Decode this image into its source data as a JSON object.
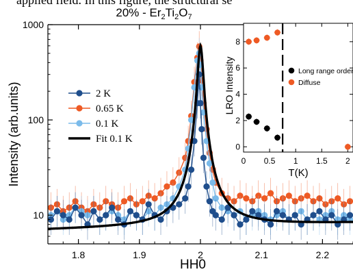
{
  "header_fragment": "applied field. In this figure, the structural se",
  "chart_data": [
    {
      "type": "line",
      "title": "20% - Er2Ti2O7",
      "title_parts": [
        "20%  - Er",
        "2",
        "Ti",
        "2",
        "O",
        "7"
      ],
      "xlabel": "HH0",
      "ylabel": "Intensity (arb.units)",
      "xlim": [
        1.75,
        2.25
      ],
      "ylim": [
        5,
        1000
      ],
      "yscale": "log",
      "xticks": [
        1.8,
        1.9,
        2.0,
        2.1,
        2.2
      ],
      "xtick_labels": [
        "1.8",
        "1.9",
        "2",
        "2.1",
        "2.2"
      ],
      "yticks": [
        10,
        100,
        1000
      ],
      "ytick_labels": [
        "10",
        "100",
        "1000"
      ],
      "grid": false,
      "legend_position": "left",
      "series": [
        {
          "name": "2 K",
          "color": "#1f4e8c",
          "marker": "circle",
          "line": true,
          "error_bars": true,
          "x": [
            1.755,
            1.765,
            1.775,
            1.785,
            1.795,
            1.805,
            1.815,
            1.825,
            1.835,
            1.845,
            1.855,
            1.865,
            1.875,
            1.885,
            1.895,
            1.905,
            1.915,
            1.925,
            1.935,
            1.945,
            1.955,
            1.965,
            1.975,
            1.98,
            1.985,
            1.99,
            1.995,
            1.998,
            2.0,
            2.002,
            2.005,
            2.01,
            2.015,
            2.02,
            2.025,
            2.035,
            2.045,
            2.055,
            2.065,
            2.075,
            2.085,
            2.095,
            2.105,
            2.115,
            2.125,
            2.135,
            2.145,
            2.155,
            2.165,
            2.175,
            2.185,
            2.195,
            2.205,
            2.215,
            2.225,
            2.235,
            2.245
          ],
          "y": [
            9,
            11,
            10,
            9,
            12,
            10,
            8,
            11,
            9,
            10,
            12,
            9,
            8,
            11,
            10,
            9,
            13,
            10,
            9,
            11,
            12,
            13,
            15,
            20,
            30,
            60,
            150,
            300,
            150,
            80,
            40,
            20,
            14,
            11,
            10,
            9,
            12,
            10,
            8,
            9,
            11,
            10,
            9,
            8,
            11,
            10,
            9,
            10,
            8,
            9,
            10,
            11,
            9,
            10,
            8,
            9,
            10
          ]
        },
        {
          "name": "0.65 K",
          "color": "#ee5a24",
          "marker": "circle",
          "line": true,
          "error_bars": true,
          "x": [
            1.755,
            1.765,
            1.775,
            1.785,
            1.795,
            1.805,
            1.815,
            1.825,
            1.835,
            1.845,
            1.855,
            1.865,
            1.875,
            1.885,
            1.895,
            1.905,
            1.915,
            1.925,
            1.935,
            1.945,
            1.955,
            1.965,
            1.975,
            1.98,
            1.985,
            1.99,
            1.995,
            1.998,
            2.0,
            2.002,
            2.005,
            2.01,
            2.015,
            2.02,
            2.025,
            2.035,
            2.045,
            2.055,
            2.065,
            2.075,
            2.085,
            2.095,
            2.105,
            2.115,
            2.125,
            2.135,
            2.145,
            2.155,
            2.165,
            2.175,
            2.185,
            2.195,
            2.205,
            2.215,
            2.225,
            2.235,
            2.245
          ],
          "y": [
            12,
            13,
            11,
            12,
            14,
            12,
            11,
            13,
            12,
            14,
            13,
            12,
            14,
            15,
            13,
            14,
            16,
            15,
            17,
            20,
            22,
            28,
            40,
            60,
            110,
            250,
            450,
            590,
            420,
            260,
            150,
            80,
            45,
            30,
            22,
            17,
            15,
            14,
            16,
            15,
            14,
            16,
            15,
            17,
            14,
            15,
            16,
            14,
            15,
            16,
            14,
            15,
            13,
            14,
            15,
            13,
            14
          ]
        },
        {
          "name": "0.1 K",
          "color": "#7bbbea",
          "marker": "circle",
          "line": true,
          "error_bars": true,
          "x": [
            1.755,
            1.765,
            1.775,
            1.785,
            1.795,
            1.805,
            1.815,
            1.825,
            1.835,
            1.845,
            1.855,
            1.865,
            1.875,
            1.885,
            1.895,
            1.905,
            1.915,
            1.925,
            1.935,
            1.945,
            1.955,
            1.965,
            1.975,
            1.98,
            1.985,
            1.99,
            1.995,
            1.998,
            2.0,
            2.002,
            2.005,
            2.01,
            2.015,
            2.02,
            2.025,
            2.035,
            2.045,
            2.055,
            2.065,
            2.075,
            2.085,
            2.095,
            2.105,
            2.115,
            2.125,
            2.135,
            2.145,
            2.155,
            2.165,
            2.175,
            2.185,
            2.195,
            2.205,
            2.215,
            2.225,
            2.235,
            2.245
          ],
          "y": [
            10,
            11,
            9,
            10,
            12,
            11,
            10,
            11,
            9,
            10,
            11,
            10,
            9,
            11,
            10,
            9,
            11,
            10,
            12,
            13,
            15,
            20,
            30,
            50,
            100,
            220,
            420,
            500,
            380,
            220,
            120,
            60,
            35,
            22,
            15,
            12,
            11,
            10,
            11,
            9,
            10,
            11,
            10,
            9,
            10,
            11,
            9,
            10,
            11,
            9,
            10,
            9,
            10,
            11,
            9,
            10,
            9
          ]
        },
        {
          "name": "Fit 0.1 K",
          "color": "#000000",
          "marker": "none",
          "line": true,
          "function": "lorentzian",
          "center": 2.0,
          "peak": 600,
          "hwhm": 0.0045,
          "background_start": 7,
          "background_end": 8.3
        }
      ]
    },
    {
      "type": "scatter",
      "title": "",
      "xlabel": "T(K)",
      "ylabel": "LRO Intensity",
      "xlim": [
        0,
        2.1
      ],
      "ylim": [
        -0.4,
        9.4
      ],
      "xticks": [
        0,
        0.5,
        1,
        1.5,
        2
      ],
      "xtick_labels": [
        "0",
        "0.5",
        "1",
        "1.5",
        "2"
      ],
      "yticks": [
        0,
        2,
        4,
        6,
        8
      ],
      "ytick_labels": [
        "0",
        "2",
        "4",
        "6",
        "8"
      ],
      "vline_x": 0.75,
      "vline_style": "dashed",
      "legend_position": "right",
      "series": [
        {
          "name": "Long range order",
          "color": "#000000",
          "x": [
            0.1,
            0.25,
            0.45,
            0.65
          ],
          "y": [
            2.3,
            1.9,
            1.4,
            0.7
          ]
        },
        {
          "name": "Diffuse",
          "color": "#ee5a24",
          "x": [
            0.1,
            0.25,
            0.45,
            0.65,
            2.0
          ],
          "y": [
            8.0,
            8.1,
            8.3,
            8.7,
            0.0
          ]
        }
      ]
    }
  ]
}
